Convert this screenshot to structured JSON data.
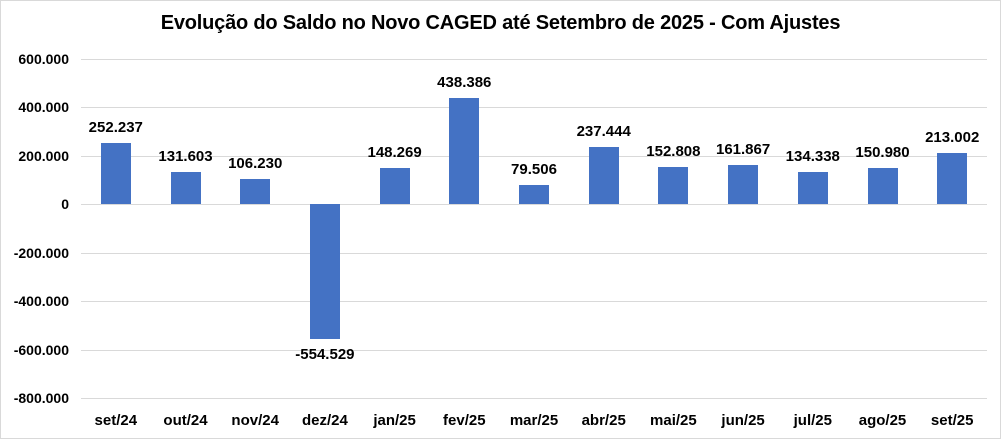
{
  "title": "Evolução do Saldo no Novo CAGED até Setembro de 2025 - Com Ajustes",
  "chart_data": {
    "type": "bar",
    "title": "Evolução do Saldo no Novo CAGED até Setembro de 2025 - Com Ajustes",
    "categories": [
      "set/24",
      "out/24",
      "nov/24",
      "dez/24",
      "jan/25",
      "fev/25",
      "mar/25",
      "abr/25",
      "mai/25",
      "jun/25",
      "jul/25",
      "ago/25",
      "set/25"
    ],
    "values": [
      252237,
      131603,
      106230,
      -554529,
      148269,
      438386,
      79506,
      237444,
      152808,
      161867,
      134338,
      150980,
      213002
    ],
    "value_labels": [
      "252.237",
      "131.603",
      "106.230",
      "-554.529",
      "148.269",
      "438.386",
      "79.506",
      "237.444",
      "152.808",
      "161.867",
      "134.338",
      "150.980",
      "213.002"
    ],
    "y_tick_labels": [
      "600.000",
      "400.000",
      "200.000",
      "0",
      "-200.000",
      "-400.000",
      "-600.000",
      "-800.000"
    ],
    "y_tick_values": [
      600000,
      400000,
      200000,
      0,
      -200000,
      -400000,
      -600000,
      -800000
    ],
    "ylim": [
      -800000,
      600000
    ],
    "xlabel": "",
    "ylabel": "",
    "grid": true,
    "legend": "none",
    "colors": {
      "bar": "#4472C4",
      "gridline": "#D9D9D9",
      "text": "#000000",
      "background": "#FFFFFF"
    }
  }
}
